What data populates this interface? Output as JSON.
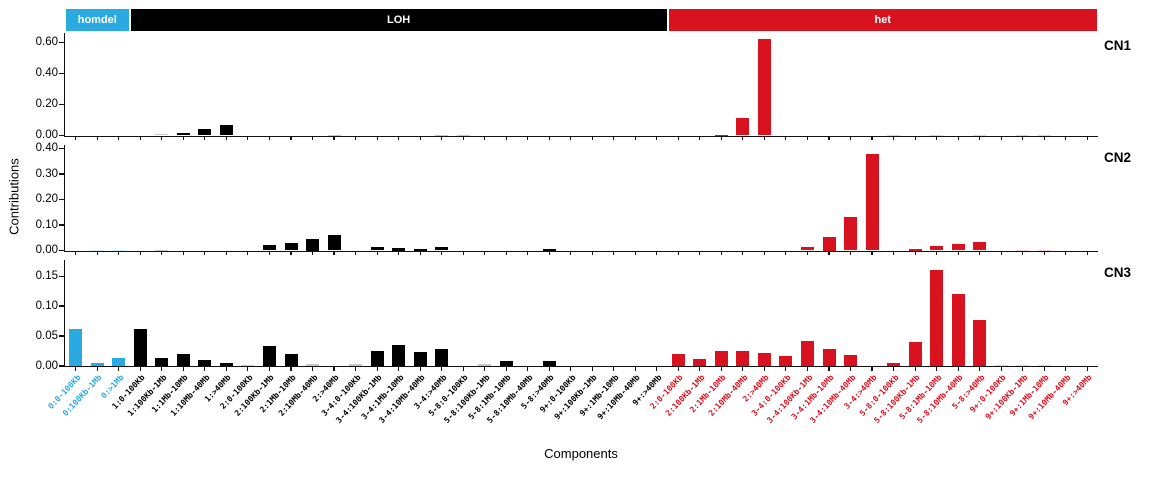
{
  "figure": {
    "xlabel": "Components",
    "ylabel": "Contributions",
    "group_bands": [
      {
        "label": "homdel",
        "color": "#2BAAE2",
        "text_color": "#ffffff",
        "count": 3
      },
      {
        "label": "LOH",
        "color": "#000000",
        "text_color": "#ffffff",
        "count": 25
      },
      {
        "label": "het",
        "color": "#D8121F",
        "text_color": "#ffffff",
        "count": 20
      }
    ]
  },
  "chart_data": {
    "type": "bar",
    "xlabel": "Components",
    "ylabel": "Contributions",
    "grid": false,
    "legend_position": "top-band",
    "categories": [
      "0:0-100Kb",
      "0:100Kb-1Mb",
      "0:>1Mb",
      "1:0-100Kb",
      "1:100Kb-1Mb",
      "1:1Mb-10Mb",
      "1:10Mb-40Mb",
      "1:>40Mb",
      "2:0-100Kb",
      "2:100Kb-1Mb",
      "2:1Mb-10Mb",
      "2:10Mb-40Mb",
      "2:>40Mb",
      "3-4:0-100Kb",
      "3-4:100Kb-1Mb",
      "3-4:1Mb-10Mb",
      "3-4:10Mb-40Mb",
      "3-4:>40Mb",
      "5-8:0-100Kb",
      "5-8:100Kb-1Mb",
      "5-8:1Mb-10Mb",
      "5-8:10Mb-40Mb",
      "5-8:>40Mb",
      "9+:0-100Kb",
      "9+:100Kb-1Mb",
      "9+:1Mb-10Mb",
      "9+:10Mb-40Mb",
      "9+:>40Mb",
      "2:0-100Kb",
      "2:100Kb-1Mb",
      "2:1Mb-10Mb",
      "2:10Mb-40Mb",
      "2:>40Mb",
      "3-4:0-100Kb",
      "3-4:100Kb-1Mb",
      "3-4:1Mb-10Mb",
      "3-4:10Mb-40Mb",
      "3-4:>40Mb",
      "5-8:0-100Kb",
      "5-8:100Kb-1Mb",
      "5-8:1Mb-10Mb",
      "5-8:10Mb-40Mb",
      "5-8:>40Mb",
      "9+:0-100Kb",
      "9+:100Kb-1Mb",
      "9+:1Mb-10Mb",
      "9+:10Mb-40Mb",
      "9+:>40Mb"
    ],
    "category_group": [
      "homdel",
      "homdel",
      "homdel",
      "LOH",
      "LOH",
      "LOH",
      "LOH",
      "LOH",
      "LOH",
      "LOH",
      "LOH",
      "LOH",
      "LOH",
      "LOH",
      "LOH",
      "LOH",
      "LOH",
      "LOH",
      "LOH",
      "LOH",
      "LOH",
      "LOH",
      "LOH",
      "LOH",
      "LOH",
      "LOH",
      "LOH",
      "LOH",
      "het",
      "het",
      "het",
      "het",
      "het",
      "het",
      "het",
      "het",
      "het",
      "het",
      "het",
      "het",
      "het",
      "het",
      "het",
      "het",
      "het",
      "het",
      "het",
      "het"
    ],
    "series": [
      {
        "name": "CN1",
        "ylim": [
          0,
          0.66
        ],
        "yticks": [
          0.0,
          0.2,
          0.4,
          0.6
        ],
        "values": [
          0,
          0,
          0,
          0,
          0.008,
          0.015,
          0.04,
          0.065,
          0,
          0,
          0,
          0,
          0.006,
          0,
          0,
          0,
          0,
          0.004,
          0.004,
          0,
          0,
          0,
          0,
          0,
          0,
          0,
          0,
          0,
          0,
          0,
          0.006,
          0.11,
          0.62,
          0,
          0,
          0,
          0,
          0,
          0.003,
          0,
          0.003,
          0,
          0.003,
          0,
          0.003,
          0.003,
          0,
          0
        ],
        "muted": [
          4,
          12,
          17,
          18,
          38,
          40,
          42,
          44,
          45
        ]
      },
      {
        "name": "CN2",
        "ylim": [
          0,
          0.414
        ],
        "yticks": [
          0.0,
          0.1,
          0.2,
          0.3,
          0.4
        ],
        "values": [
          0,
          0.004,
          0.002,
          0,
          0.004,
          0,
          0,
          0,
          0,
          0.02,
          0.03,
          0.045,
          0.06,
          0,
          0.012,
          0.01,
          0.008,
          0.012,
          0,
          0,
          0,
          0,
          0.008,
          0,
          0,
          0,
          0,
          0,
          0,
          0,
          0,
          0,
          0,
          0,
          0.015,
          0.055,
          0.13,
          0.38,
          0,
          0.008,
          0.016,
          0.024,
          0.035,
          0,
          0.002,
          0.002,
          0,
          0
        ],
        "muted": [
          1,
          2,
          4,
          44,
          45
        ]
      },
      {
        "name": "CN3",
        "ylim": [
          0,
          0.177
        ],
        "yticks": [
          0.0,
          0.05,
          0.1,
          0.15
        ],
        "values": [
          0.062,
          0.005,
          0.013,
          0.062,
          0.014,
          0.02,
          0.01,
          0.005,
          0.002,
          0.033,
          0.02,
          0.003,
          0,
          0.003,
          0.025,
          0.035,
          0.023,
          0.028,
          0,
          0.003,
          0.008,
          0,
          0.008,
          0,
          0,
          0,
          0,
          0,
          0.02,
          0.012,
          0.025,
          0.025,
          0.022,
          0.016,
          0.042,
          0.028,
          0.018,
          0,
          0.005,
          0.04,
          0.16,
          0.12,
          0.077,
          0.002,
          0.002,
          0.002,
          0,
          0
        ],
        "muted": [
          8,
          11,
          13,
          19,
          43,
          44,
          45
        ]
      }
    ]
  }
}
